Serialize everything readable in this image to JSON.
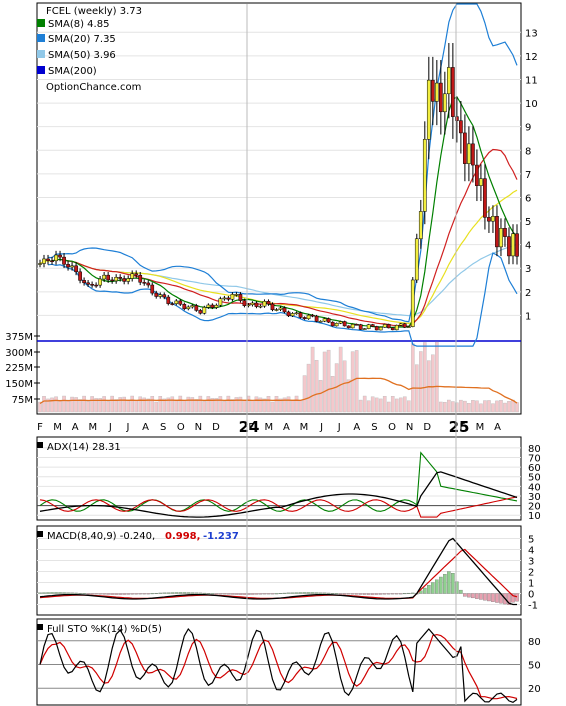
{
  "chart_data": [
    {
      "type": "candlestick",
      "title": "FCEL (weekly) 3.73",
      "watermark": "OptionChance.com",
      "x_ticks": [
        "F",
        "M",
        "A",
        "M",
        "J",
        "J",
        "A",
        "S",
        "O",
        "N",
        "D",
        "24",
        "F",
        "M",
        "A",
        "M",
        "J",
        "J",
        "A",
        "S",
        "O",
        "N",
        "D",
        "25",
        "F",
        "M",
        "A"
      ],
      "y_ticks": [
        1,
        2,
        3,
        4,
        5,
        6,
        7,
        8,
        9,
        10,
        11,
        12,
        13
      ],
      "ylim": [
        0,
        14
      ],
      "grid": true,
      "legend": [
        {
          "label": "SMA(8) 4.85",
          "color": "#008000"
        },
        {
          "label": "SMA(20) 7.35",
          "color": "#1e7fd6"
        },
        {
          "label": "SMA(50) 3.96",
          "color": "#90c8e8"
        },
        {
          "label": "SMA(200)",
          "color": "#0000d0"
        }
      ],
      "price_series_est": {
        "x_index": [
          0,
          4,
          8,
          12,
          16,
          20,
          24,
          28,
          32,
          36,
          40,
          44,
          48,
          52,
          56,
          60,
          64,
          68,
          72,
          76,
          80,
          84,
          88,
          92,
          95,
          96,
          97,
          98,
          100,
          102,
          104,
          106,
          108,
          110,
          112,
          114,
          116,
          118,
          119
        ],
        "close": [
          3.2,
          3.5,
          3.0,
          2.2,
          2.6,
          2.5,
          2.7,
          2.0,
          1.6,
          1.4,
          1.2,
          1.5,
          1.9,
          1.4,
          1.5,
          1.2,
          1.0,
          0.9,
          0.7,
          0.6,
          0.5,
          0.5,
          0.5,
          0.6,
          6.0,
          8.0,
          11.0,
          10.5,
          10.0,
          11.0,
          9.0,
          8.0,
          7.5,
          6.2,
          5.0,
          4.5,
          4.2,
          3.9,
          3.73
        ]
      },
      "volume_axis": {
        "ticks": [
          "375M",
          "300M",
          "225M",
          "150M",
          "75M"
        ]
      }
    },
    {
      "type": "line",
      "title": "ADX(14) 28.31",
      "y_ticks": [
        10,
        20,
        30,
        40,
        50,
        60,
        70,
        80
      ],
      "ylim": [
        5,
        85
      ],
      "series_colors": {
        "adx": "#000000",
        "plus_di": "#008000",
        "minus_di": "#d00000"
      }
    },
    {
      "type": "line",
      "title": "MACD(8,40,9) -0.240,",
      "values_text": [
        "0.998,",
        "-1.237"
      ],
      "values_colors": [
        "#d00000",
        "#1e3fd0"
      ],
      "y_ticks": [
        -1,
        0,
        1,
        2,
        3,
        4,
        5
      ],
      "ylim": [
        -1.5,
        5.5
      ]
    },
    {
      "type": "line",
      "title": "Full STO %K(14) %D(5)",
      "y_ticks": [
        20,
        50,
        80
      ],
      "ylim": [
        0,
        100
      ]
    }
  ]
}
